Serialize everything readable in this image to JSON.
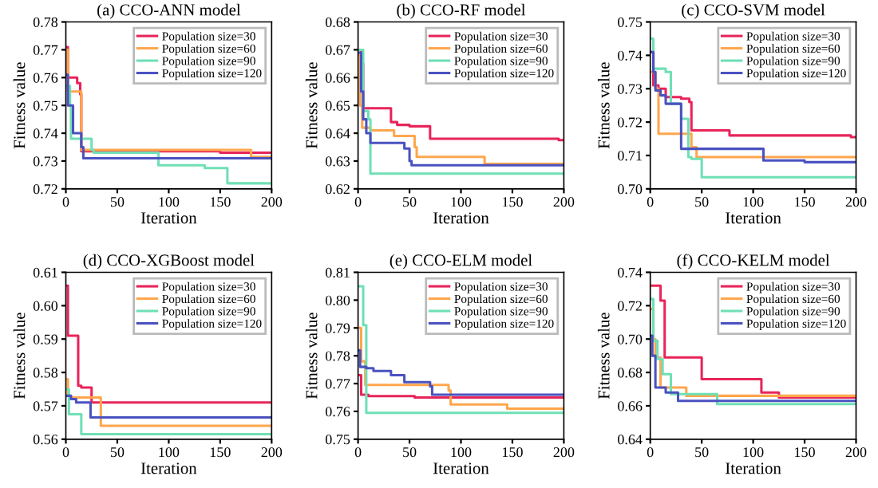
{
  "chart_data": [
    {
      "type": "step",
      "title": "(a) CCO-ANN model",
      "xlabel": "Iteration",
      "ylabel": "Fitness value",
      "xlim": [
        0,
        200
      ],
      "xticks": [
        0,
        50,
        100,
        150,
        200
      ],
      "ylim": [
        0.72,
        0.78
      ],
      "yticks": [
        0.72,
        0.73,
        0.74,
        0.75,
        0.76,
        0.77,
        0.78
      ],
      "legend": "top right",
      "grid": false,
      "series": [
        {
          "name": "Population size=30",
          "color": "#e8245a",
          "x": [
            0,
            2,
            11,
            14,
            15,
            150,
            200
          ],
          "values": [
            0.771,
            0.76,
            0.758,
            0.754,
            0.7335,
            0.733,
            0.733
          ]
        },
        {
          "name": "Population size=60",
          "color": "#ffa64d",
          "x": [
            0,
            2,
            15,
            180,
            200
          ],
          "values": [
            0.77,
            0.755,
            0.734,
            0.7315,
            0.7315
          ]
        },
        {
          "name": "Population size=90",
          "color": "#6fe0b5",
          "x": [
            0,
            4,
            5,
            25,
            27,
            90,
            135,
            157,
            200
          ],
          "values": [
            0.757,
            0.75,
            0.738,
            0.734,
            0.733,
            0.7285,
            0.7275,
            0.722,
            0.722
          ]
        },
        {
          "name": "Population size=120",
          "color": "#4a52c0",
          "x": [
            0,
            2,
            7,
            15,
            17,
            200
          ],
          "values": [
            0.761,
            0.75,
            0.74,
            0.735,
            0.731,
            0.731
          ]
        }
      ]
    },
    {
      "type": "step",
      "title": "(b) CCO-RF model",
      "xlabel": "Iteration",
      "ylabel": "Fitness value",
      "xlim": [
        0,
        200
      ],
      "xticks": [
        0,
        50,
        100,
        150,
        200
      ],
      "ylim": [
        0.62,
        0.68
      ],
      "yticks": [
        0.62,
        0.63,
        0.64,
        0.65,
        0.66,
        0.67,
        0.68
      ],
      "legend": "top right",
      "grid": false,
      "series": [
        {
          "name": "Population size=30",
          "color": "#e8245a",
          "x": [
            0,
            3,
            5,
            32,
            38,
            50,
            70,
            195,
            200
          ],
          "values": [
            0.67,
            0.665,
            0.649,
            0.644,
            0.643,
            0.6425,
            0.638,
            0.6375,
            0.6375
          ]
        },
        {
          "name": "Population size=60",
          "color": "#ffa64d",
          "x": [
            0,
            2,
            4,
            12,
            35,
            55,
            57,
            123,
            200
          ],
          "values": [
            0.668,
            0.65,
            0.642,
            0.641,
            0.639,
            0.635,
            0.6315,
            0.629,
            0.629
          ]
        },
        {
          "name": "Population size=90",
          "color": "#6fe0b5",
          "x": [
            0,
            5,
            10,
            12,
            200
          ],
          "values": [
            0.67,
            0.648,
            0.645,
            0.6255,
            0.6255
          ]
        },
        {
          "name": "Population size=120",
          "color": "#4a52c0",
          "x": [
            0,
            3,
            5,
            8,
            12,
            45,
            50,
            52,
            200
          ],
          "values": [
            0.669,
            0.655,
            0.645,
            0.64,
            0.6365,
            0.6345,
            0.63,
            0.6285,
            0.6285
          ]
        }
      ]
    },
    {
      "type": "step",
      "title": "(c) CCO-SVM model",
      "xlabel": "Iteration",
      "ylabel": "Fitness value",
      "xlim": [
        0,
        200
      ],
      "xticks": [
        0,
        50,
        100,
        150,
        200
      ],
      "ylim": [
        0.7,
        0.75
      ],
      "yticks": [
        {
          "value": 0.7,
          "label": "0.70"
        },
        0.71,
        0.72,
        0.73,
        0.74,
        0.75
      ],
      "legend": "top right",
      "grid": false,
      "series": [
        {
          "name": "Population size=30",
          "color": "#e8245a",
          "x": [
            0,
            3,
            8,
            15,
            30,
            38,
            40,
            77,
            195,
            200
          ],
          "values": [
            0.741,
            0.731,
            0.73,
            0.7275,
            0.727,
            0.726,
            0.7175,
            0.716,
            0.7155,
            0.7155
          ]
        },
        {
          "name": "Population size=60",
          "color": "#ffa64d",
          "x": [
            0,
            5,
            8,
            40,
            45,
            200
          ],
          "values": [
            0.735,
            0.73,
            0.7165,
            0.7125,
            0.7095,
            0.7095
          ]
        },
        {
          "name": "Population size=90",
          "color": "#6fe0b5",
          "x": [
            0,
            3,
            15,
            20,
            30,
            37,
            40,
            50,
            200
          ],
          "values": [
            0.745,
            0.736,
            0.735,
            0.7255,
            0.721,
            0.7095,
            0.709,
            0.7035,
            0.7035
          ]
        },
        {
          "name": "Population size=120",
          "color": "#4a52c0",
          "x": [
            0,
            3,
            5,
            10,
            15,
            30,
            110,
            150,
            200
          ],
          "values": [
            0.741,
            0.735,
            0.7295,
            0.728,
            0.7255,
            0.712,
            0.7085,
            0.708,
            0.708
          ]
        }
      ]
    },
    {
      "type": "step",
      "title": "(d) CCO-XGBoost model",
      "xlabel": "Iteration",
      "ylabel": "Fitness value",
      "xlim": [
        0,
        200
      ],
      "xticks": [
        0,
        50,
        100,
        150,
        200
      ],
      "ylim": [
        0.56,
        0.61
      ],
      "yticks": [
        0.56,
        0.57,
        0.58,
        0.59,
        {
          "value": 0.6,
          "label": "0.60"
        },
        0.61
      ],
      "legend": "top right",
      "grid": false,
      "series": [
        {
          "name": "Population size=30",
          "color": "#e8245a",
          "x": [
            0,
            2,
            12,
            15,
            25,
            200
          ],
          "values": [
            0.606,
            0.591,
            0.576,
            0.5755,
            0.571,
            0.571
          ]
        },
        {
          "name": "Population size=60",
          "color": "#ffa64d",
          "x": [
            0,
            2,
            5,
            34,
            200
          ],
          "values": [
            0.578,
            0.573,
            0.5725,
            0.564,
            0.564
          ]
        },
        {
          "name": "Population size=90",
          "color": "#6fe0b5",
          "x": [
            0,
            3,
            15,
            200
          ],
          "values": [
            0.575,
            0.5675,
            0.5615,
            0.5615
          ]
        },
        {
          "name": "Population size=120",
          "color": "#4a52c0",
          "x": [
            0,
            5,
            10,
            24,
            200
          ],
          "values": [
            0.573,
            0.572,
            0.571,
            0.5665,
            0.5665
          ]
        }
      ]
    },
    {
      "type": "step",
      "title": "(e) CCO-ELM model",
      "xlabel": "Iteration",
      "ylabel": "Fitness value",
      "xlim": [
        0,
        200
      ],
      "xticks": [
        0,
        50,
        100,
        150,
        200
      ],
      "ylim": [
        0.75,
        0.81
      ],
      "yticks": [
        0.75,
        0.76,
        0.77,
        0.78,
        0.79,
        {
          "value": 0.8,
          "label": "0.80"
        },
        0.81
      ],
      "legend": "top right",
      "grid": false,
      "series": [
        {
          "name": "Population size=30",
          "color": "#e8245a",
          "x": [
            0,
            3,
            10,
            55,
            200
          ],
          "values": [
            0.773,
            0.766,
            0.7655,
            0.765,
            0.765
          ]
        },
        {
          "name": "Population size=60",
          "color": "#ffa64d",
          "x": [
            0,
            3,
            7,
            88,
            90,
            145,
            200
          ],
          "values": [
            0.79,
            0.778,
            0.7695,
            0.7675,
            0.7625,
            0.761,
            0.761
          ]
        },
        {
          "name": "Population size=90",
          "color": "#6fe0b5",
          "x": [
            0,
            5,
            8,
            200
          ],
          "values": [
            0.805,
            0.791,
            0.7595,
            0.7595
          ]
        },
        {
          "name": "Population size=120",
          "color": "#4a52c0",
          "x": [
            0,
            2,
            8,
            15,
            32,
            45,
            70,
            72,
            200
          ],
          "values": [
            0.782,
            0.776,
            0.7755,
            0.7745,
            0.773,
            0.7705,
            0.769,
            0.766,
            0.766
          ]
        }
      ]
    },
    {
      "type": "step",
      "title": "(f) CCO-KELM model",
      "xlabel": "Iteration",
      "ylabel": "Fitness value",
      "xlim": [
        0,
        200
      ],
      "xticks": [
        0,
        50,
        100,
        150,
        200
      ],
      "ylim": [
        0.64,
        0.74
      ],
      "yticks": [
        0.64,
        0.66,
        0.68,
        {
          "value": 0.7,
          "label": "0.70"
        },
        0.72,
        0.74
      ],
      "legend": "top right",
      "grid": false,
      "series": [
        {
          "name": "Population size=30",
          "color": "#e8245a",
          "x": [
            0,
            10,
            14,
            50,
            108,
            125,
            200
          ],
          "values": [
            0.732,
            0.723,
            0.689,
            0.676,
            0.668,
            0.665,
            0.665
          ]
        },
        {
          "name": "Population size=60",
          "color": "#ffa64d",
          "x": [
            0,
            3,
            5,
            10,
            35,
            200
          ],
          "values": [
            0.718,
            0.7,
            0.689,
            0.671,
            0.666,
            0.666
          ]
        },
        {
          "name": "Population size=90",
          "color": "#6fe0b5",
          "x": [
            0,
            3,
            7,
            12,
            20,
            65,
            200
          ],
          "values": [
            0.724,
            0.699,
            0.688,
            0.679,
            0.667,
            0.661,
            0.661
          ]
        },
        {
          "name": "Population size=120",
          "color": "#4a52c0",
          "x": [
            0,
            2,
            5,
            15,
            27,
            200
          ],
          "values": [
            0.702,
            0.69,
            0.671,
            0.668,
            0.663,
            0.663
          ]
        }
      ]
    }
  ]
}
